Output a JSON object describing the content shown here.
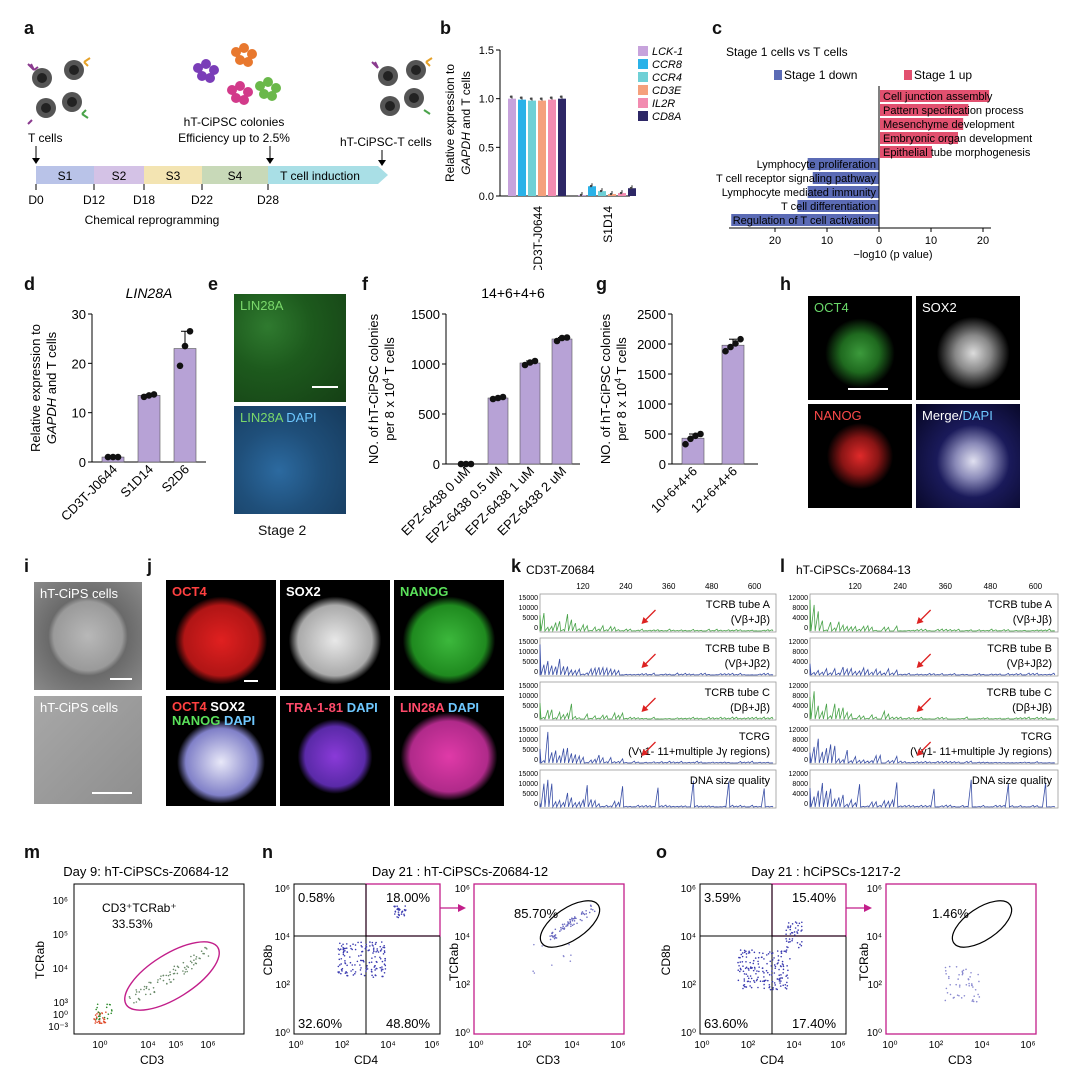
{
  "panel_labels": [
    "a",
    "b",
    "c",
    "d",
    "e",
    "f",
    "g",
    "h",
    "i",
    "j",
    "k",
    "l",
    "m",
    "n",
    "o"
  ],
  "panel_a": {
    "tcells_label": "T cells",
    "colonies_label": "hT-CiPSC colonies",
    "efficiency_label": "Efficiency up to 2.5%",
    "ipsc_t_label": "hT-CiPSC-T cells",
    "stages": [
      "S1",
      "S2",
      "S3",
      "S4",
      "T cell induction"
    ],
    "days": [
      "D0",
      "D12",
      "D18",
      "D22",
      "D28"
    ],
    "reprogramming_label": "Chemical reprogramming",
    "colors": {
      "s1": "#b9c3e8",
      "s2": "#d4c2e6",
      "s3": "#f3e4b2",
      "s4": "#c8d9b8",
      "tcell": "#a9dfe6"
    }
  },
  "chart_b": {
    "type": "bar",
    "ylabel_line1": "Relative expression to",
    "ylabel_gene": "GAPDH",
    "ylabel_rest": " and T cells",
    "categories": [
      "CD3T-J0644",
      "S1D14"
    ],
    "yticks": [
      "0.0",
      "0.5",
      "1.0",
      "1.5"
    ],
    "ylim": [
      0,
      1.5
    ],
    "series": [
      {
        "name": "LCK-1",
        "color": "#c7a3dc",
        "values": [
          1.0,
          0.01
        ]
      },
      {
        "name": "CCR8",
        "color": "#2ab2e8",
        "values": [
          0.99,
          0.1
        ]
      },
      {
        "name": "CCR4",
        "color": "#6fd0d6",
        "values": [
          0.98,
          0.05
        ]
      },
      {
        "name": "CD3E",
        "color": "#f5a07c",
        "values": [
          0.98,
          0.02
        ]
      },
      {
        "name": "IL2R",
        "color": "#f28bb0",
        "values": [
          0.99,
          0.03
        ]
      },
      {
        "name": "CD8A",
        "color": "#2d2766",
        "values": [
          1.0,
          0.08
        ]
      }
    ]
  },
  "chart_c": {
    "type": "bar",
    "title": "Stage 1 cells vs T cells",
    "legend_down": "Stage 1 down",
    "legend_up": "Stage 1 up",
    "color_down": "#5b6bb5",
    "color_up": "#e2506f",
    "up_terms": [
      {
        "name": "Cell junction assembly",
        "value": 21
      },
      {
        "name": "Pattern specification process",
        "value": 17
      },
      {
        "name": "Mesenchyme development",
        "value": 16
      },
      {
        "name": "Embryonic organ development",
        "value": 15
      },
      {
        "name": "Epithelial tube morphogenesis",
        "value": 10
      }
    ],
    "down_terms": [
      {
        "name": "Lymphocyte proliferation",
        "value": 14
      },
      {
        "name": "T cell receptor signaling pathway",
        "value": 13
      },
      {
        "name": "Lymphocyte mediated immunity",
        "value": 14
      },
      {
        "name": "T cell differentiation",
        "value": 16
      },
      {
        "name": "Regulation of T cell activation",
        "value": 29
      }
    ],
    "xticks": [
      "20",
      "10",
      "0",
      "10",
      "20"
    ],
    "xlabel": "−log10 (p value)"
  },
  "chart_d": {
    "type": "bar",
    "title": "LIN28A",
    "ylabel_line1": "Relative expression to",
    "ylabel_gene": "GAPDH",
    "ylabel_rest": " and T cells",
    "categories": [
      "CD3T-J0644",
      "S1D14",
      "S2D6"
    ],
    "values": [
      1,
      13.5,
      23
    ],
    "points": [
      [
        1,
        1,
        1
      ],
      [
        13.2,
        13.5,
        13.7
      ],
      [
        19.5,
        23.5,
        26.5
      ]
    ],
    "yticks": [
      "0",
      "10",
      "20",
      "30"
    ],
    "ylim": [
      0,
      30
    ],
    "color": "#b7a2d6"
  },
  "panel_e": {
    "top_label": "LIN28A",
    "bottom_label_1": "LIN28A",
    "bottom_label_2": "DAPI",
    "caption": "Stage 2"
  },
  "chart_f": {
    "type": "bar",
    "title": "14+6+4+6",
    "ylabel_line1": "NO. of hT-CiPSC colonies",
    "ylabel_line2": "per 8 x 10",
    "ylabel_sup": "4",
    "ylabel_end": " T cells",
    "categories": [
      "EPZ-6438 0 uM",
      "EPZ-6438 0.5 uM",
      "EPZ-6438 1 uM",
      "EPZ-6438 2 uM"
    ],
    "values": [
      0,
      660,
      1010,
      1250
    ],
    "points": [
      [
        0,
        0,
        0
      ],
      [
        650,
        660,
        670
      ],
      [
        990,
        1015,
        1030
      ],
      [
        1230,
        1260,
        1265
      ]
    ],
    "yticks": [
      "0",
      "500",
      "1000",
      "1500"
    ],
    "ylim": [
      0,
      1500
    ],
    "color": "#b7a2d6"
  },
  "chart_g": {
    "type": "bar",
    "ylabel_line1": "NO. of hT-CiPSC colonies",
    "ylabel_line2": "per 8 x 10",
    "ylabel_sup": "4",
    "ylabel_end": " T cells",
    "categories": [
      "10+6+4+6",
      "12+6+4+6"
    ],
    "values": [
      430,
      1980
    ],
    "points": [
      [
        330,
        420,
        470,
        500
      ],
      [
        1880,
        1950,
        2010,
        2080
      ]
    ],
    "yticks": [
      "0",
      "500",
      "1000",
      "1500",
      "2000",
      "2500"
    ],
    "ylim": [
      0,
      2500
    ],
    "color": "#b7a2d6"
  },
  "panel_h": {
    "labels": [
      "OCT4",
      "SOX2",
      "NANOG",
      "Merge/",
      "DAPI"
    ]
  },
  "panel_i": {
    "labels": [
      "hT-CiPS cells",
      "hT-CiPS cells"
    ]
  },
  "panel_j": {
    "labels": [
      "OCT4",
      "SOX2",
      "NANOG",
      "OCT4",
      "SOX2",
      "NANOG",
      "DAPI",
      "TRA-1-81",
      "DAPI",
      "LIN28A",
      "DAPI"
    ]
  },
  "panel_k": {
    "title": "CD3T-Z0684",
    "xticks": [
      "120",
      "240",
      "360",
      "480",
      "600"
    ],
    "rows": [
      {
        "label1": "TCRB tube A",
        "label2": "(Vβ+Jβ)",
        "yticks": [
          "15000",
          "10000",
          "5000",
          "0"
        ],
        "color": "#4aa34a"
      },
      {
        "label1": "TCRB tube B",
        "label2": "(Vβ+Jβ2)",
        "yticks": [
          "15000",
          "10000",
          "5000",
          "0"
        ],
        "color": "#3a4fa6"
      },
      {
        "label1": "TCRB tube C",
        "label2": "(Dβ+Jβ)",
        "yticks": [
          "15000",
          "10000",
          "5000",
          "0"
        ],
        "color": "#4aa34a"
      },
      {
        "label1": "TCRG",
        "label2": "(Vγ1- 11+multiple Jγ regions)",
        "yticks": [
          "15000",
          "10000",
          "5000",
          "0"
        ],
        "color": "#3a4fa6"
      },
      {
        "label1": "DNA size quality",
        "label2": "",
        "yticks": [
          "15000",
          "10000",
          "5000",
          "0"
        ],
        "color": "#3a4fa6"
      }
    ]
  },
  "panel_l": {
    "title": "hT-CiPSCs-Z0684-13",
    "xticks": [
      "120",
      "240",
      "360",
      "480",
      "600"
    ],
    "rows": [
      {
        "label1": "TCRB tube A",
        "label2": "(Vβ+Jβ)",
        "yticks": [
          "12000",
          "8000",
          "4000",
          "0"
        ],
        "color": "#4aa34a"
      },
      {
        "label1": "TCRB tube B",
        "label2": "(Vβ+Jβ2)",
        "yticks": [
          "12000",
          "8000",
          "4000",
          "0"
        ],
        "color": "#3a4fa6"
      },
      {
        "label1": "TCRB tube C",
        "label2": "(Dβ+Jβ)",
        "yticks": [
          "12000",
          "8000",
          "4000",
          "0"
        ],
        "color": "#4aa34a"
      },
      {
        "label1": "TCRG",
        "label2": "(Vγ1- 11+multiple Jγ regions)",
        "yticks": [
          "12000",
          "8000",
          "4000",
          "0"
        ],
        "color": "#3a4fa6"
      },
      {
        "label1": "DNA size quality",
        "label2": "",
        "yticks": [
          "12000",
          "8000",
          "4000",
          "0"
        ],
        "color": "#3a4fa6"
      }
    ]
  },
  "panel_m": {
    "title": "Day 9: hT-CiPSCs-Z0684-12",
    "gate_label": "CD3⁺TCRab⁺",
    "gate_value": "33.53%",
    "xlabel": "CD3",
    "ylabel": "TCRab",
    "yticks": [
      "10⁶",
      "10⁵",
      "10⁴",
      "10³",
      "10⁰",
      "10⁻³"
    ],
    "xticks": [
      "10⁰",
      "10⁴",
      "10⁵",
      "10⁶"
    ]
  },
  "panel_n": {
    "title": "Day 21 : hT-CiPSCs-Z0684-12",
    "quadrants": [
      "0.58%",
      "18.00%",
      "32.60%",
      "48.80%"
    ],
    "gate_value": "85.70%",
    "xlabel_left": "CD4",
    "ylabel_left": "CD8b",
    "xlabel_right": "CD3",
    "ylabel_right": "TCRab",
    "ticks": [
      "10⁰",
      "10²",
      "10⁴",
      "10⁶"
    ]
  },
  "panel_o": {
    "title": "Day 21 : hCiPSCs-1217-2",
    "quadrants": [
      "3.59%",
      "15.40%",
      "63.60%",
      "17.40%"
    ],
    "gate_value": "1.46%",
    "xlabel_left": "CD4",
    "ylabel_left": "CD8b",
    "xlabel_right": "CD3",
    "ylabel_right": "TCRab",
    "ticks": [
      "10⁰",
      "10²",
      "10⁴",
      "10⁶"
    ]
  }
}
